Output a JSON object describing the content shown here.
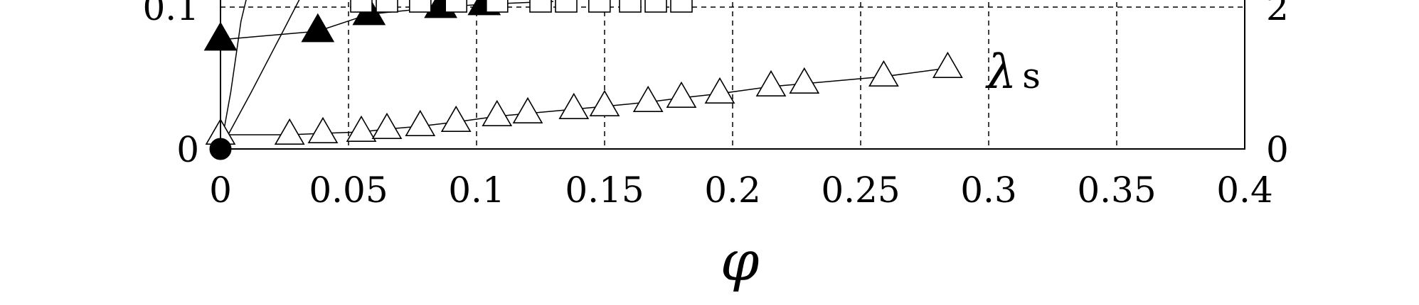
{
  "chart_data": {
    "type": "scatter",
    "xlabel": "φ",
    "xlim": [
      0,
      0.4
    ],
    "x_ticks": [
      "0",
      "0.05",
      "0.1",
      "0.15",
      "0.2",
      "0.25",
      "0.3",
      "0.35",
      "0.4"
    ],
    "y_left_visible_range": [
      0,
      0.1
    ],
    "y_left_ticks": [
      {
        "value": 0,
        "label": "0"
      },
      {
        "value": 0.1,
        "label": "0.1"
      }
    ],
    "y_right_visible_range": [
      0,
      2
    ],
    "y_right_ticks": [
      {
        "value": 0,
        "label": "0"
      },
      {
        "value": 2,
        "label": "2"
      }
    ],
    "grid": true,
    "series": [
      {
        "name": "λs",
        "label_main": "λ",
        "label_sub": "s",
        "marker": "open-triangle",
        "x": [
          0.0,
          0.027,
          0.04,
          0.055,
          0.065,
          0.078,
          0.092,
          0.108,
          0.12,
          0.138,
          0.15,
          0.167,
          0.18,
          0.195,
          0.215,
          0.228,
          0.259,
          0.284
        ],
        "y": [
          0.01,
          0.01,
          0.011,
          0.012,
          0.014,
          0.016,
          0.019,
          0.023,
          0.025,
          0.028,
          0.03,
          0.033,
          0.036,
          0.039,
          0.044,
          0.046,
          0.051,
          0.057
        ]
      },
      {
        "name": "",
        "marker": "filled-triangle",
        "x": [
          0.0,
          0.038,
          0.058,
          0.086,
          0.103
        ],
        "y": [
          0.077,
          0.083,
          0.095,
          0.1,
          0.102
        ]
      },
      {
        "name": "",
        "marker": "open-square",
        "x": [
          0.055,
          0.065,
          0.078,
          0.092,
          0.108,
          0.125,
          0.135,
          0.148,
          0.16,
          0.17,
          0.18
        ],
        "y": [
          0.104,
          0.104,
          0.104,
          0.104,
          0.104,
          0.104,
          0.104,
          0.104,
          0.104,
          0.104,
          0.104
        ]
      },
      {
        "name": "",
        "marker": "filled-circle",
        "x": [
          0.0
        ],
        "y": [
          0.0
        ]
      }
    ]
  }
}
